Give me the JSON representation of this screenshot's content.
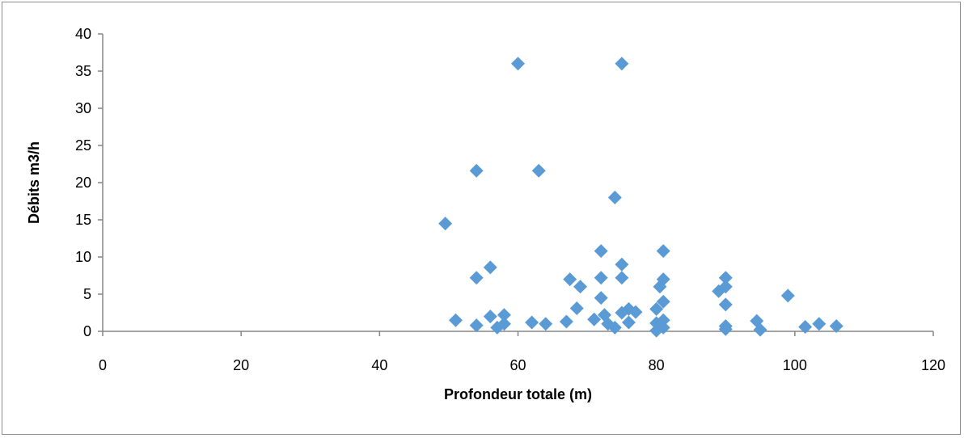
{
  "chart_data": {
    "type": "scatter",
    "title": "",
    "xlabel": "Profondeur totale (m)",
    "ylabel": "Débits m3/h",
    "xlim": [
      0,
      120
    ],
    "ylim": [
      0,
      40
    ],
    "x_ticks": [
      0,
      20,
      40,
      60,
      80,
      100,
      120
    ],
    "y_ticks": [
      0,
      5,
      10,
      15,
      20,
      25,
      30,
      35,
      40
    ],
    "grid": false,
    "legend": "none",
    "marker": "diamond",
    "marker_color": "#5b9bd5",
    "series": [
      {
        "points": [
          [
            49.5,
            14.5
          ],
          [
            51,
            1.5
          ],
          [
            54,
            21.6
          ],
          [
            54,
            7.2
          ],
          [
            54,
            0.8
          ],
          [
            56,
            8.6
          ],
          [
            56,
            2.0
          ],
          [
            57,
            0.5
          ],
          [
            58,
            2.2
          ],
          [
            58,
            1.0
          ],
          [
            60,
            36
          ],
          [
            62,
            1.2
          ],
          [
            63,
            21.6
          ],
          [
            64,
            1.0
          ],
          [
            67,
            1.3
          ],
          [
            67.5,
            7.0
          ],
          [
            68.5,
            3.1
          ],
          [
            69,
            6.0
          ],
          [
            71,
            1.6
          ],
          [
            72,
            10.8
          ],
          [
            72,
            7.2
          ],
          [
            72,
            4.5
          ],
          [
            72.5,
            2.2
          ],
          [
            73,
            1.0
          ],
          [
            74,
            18
          ],
          [
            74,
            0.5
          ],
          [
            75,
            36
          ],
          [
            75,
            9.0
          ],
          [
            75,
            7.2
          ],
          [
            75,
            2.5
          ],
          [
            76,
            3.0
          ],
          [
            76,
            1.2
          ],
          [
            77,
            2.6
          ],
          [
            80,
            3.0
          ],
          [
            80,
            1.1
          ],
          [
            80,
            0.1
          ],
          [
            80.5,
            6.0
          ],
          [
            81,
            10.8
          ],
          [
            81,
            7.0
          ],
          [
            81,
            4.0
          ],
          [
            81,
            1.5
          ],
          [
            81,
            0.5
          ],
          [
            89,
            5.4
          ],
          [
            90,
            7.2
          ],
          [
            90,
            6.0
          ],
          [
            90,
            3.6
          ],
          [
            90,
            0.7
          ],
          [
            90,
            0.3
          ],
          [
            94.5,
            1.4
          ],
          [
            95,
            0.2
          ],
          [
            99,
            4.8
          ],
          [
            101.5,
            0.6
          ],
          [
            103.5,
            1.0
          ],
          [
            106,
            0.7
          ]
        ]
      }
    ]
  }
}
